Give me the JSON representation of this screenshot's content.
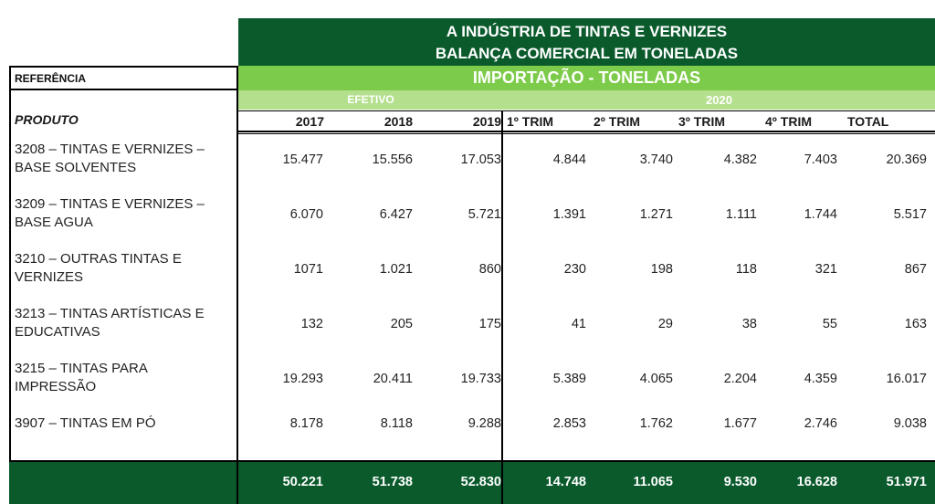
{
  "title_line1": "A INDÚSTRIA DE TINTAS E VERNIZES",
  "title_line2": "BALANÇA COMERCIAL  EM TONELADAS",
  "reference_label": "REFERÊNCIA",
  "section_title": "IMPORTAÇÃO - TONELADAS",
  "efetivo_label": "EFETIVO",
  "year_2020_label": "2020",
  "produto_label": "PRODUTO",
  "columns": [
    "2017",
    "2018",
    "2019",
    "1º TRIM",
    "2º TRIM",
    "3º TRIM",
    "4º TRIM",
    "TOTAL"
  ],
  "rows": [
    {
      "line1": "3208 – TINTAS E VERNIZES –",
      "line2": "BASE SOLVENTES",
      "values": [
        "15.477",
        "15.556",
        "17.053",
        "4.844",
        "3.740",
        "4.382",
        "7.403",
        "20.369"
      ]
    },
    {
      "line1": "3209 – TINTAS E VERNIZES –",
      "line2": "BASE AGUA",
      "values": [
        "6.070",
        "6.427",
        "5.721",
        "1.391",
        "1.271",
        "1.111",
        "1.744",
        "5.517"
      ]
    },
    {
      "line1": "3210 – OUTRAS TINTAS E",
      "line2": "VERNIZES",
      "values": [
        "1071",
        "1.021",
        "860",
        "230",
        "198",
        "118",
        "321",
        "867"
      ]
    },
    {
      "line1": "3213 – TINTAS ARTÍSTICAS E",
      "line2": "EDUCATIVAS",
      "values": [
        "132",
        "205",
        "175",
        "41",
        "29",
        "38",
        "55",
        "163"
      ]
    },
    {
      "line1": "3215 – TINTAS PARA",
      "line2": "IMPRESSÃO",
      "values": [
        "19.293",
        "20.411",
        "19.733",
        "5.389",
        "4.065",
        "2.204",
        "4.359",
        "16.017"
      ]
    },
    {
      "line1": "3907 – TINTAS EM PÓ",
      "line2": "",
      "values": [
        "8.178",
        "8.118",
        "9.288",
        "2.853",
        "1.762",
        "1.677",
        "2.746",
        "9.038"
      ]
    }
  ],
  "totals": [
    "50.221",
    "51.738",
    "52.830",
    "14.748",
    "11.065",
    "9.530",
    "16.628",
    "51.971"
  ],
  "colors": {
    "dark_green": "#0a5a2c",
    "light_green": "#7dcb4a",
    "pale_green": "#b4e08d"
  }
}
